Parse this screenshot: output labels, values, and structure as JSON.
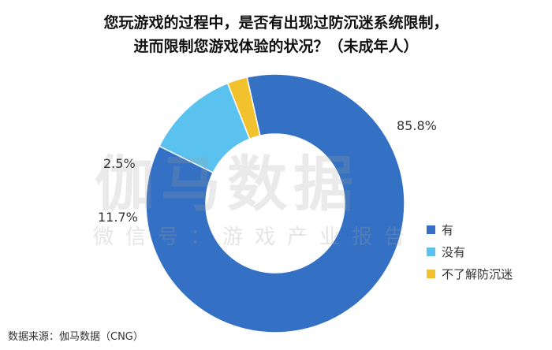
{
  "title_lines": [
    "您玩游戏的过程中，是否有出现过防沉迷系统限制，",
    "进而限制您游戏体验的状况？（未成年人）"
  ],
  "watermark": {
    "main": "伽马数据",
    "sub": "微信号：游戏产业报告"
  },
  "source": "数据来源：伽马数据（CNG）",
  "chart_data": {
    "type": "pie",
    "subtype": "donut",
    "title": "您玩游戏的过程中，是否有出现过防沉迷系统限制，进而限制您游戏体验的状况？（未成年人）",
    "categories": [
      "有",
      "没有",
      "不了解防沉迷"
    ],
    "values": [
      85.8,
      11.7,
      2.5
    ],
    "value_labels": [
      "85.8%",
      "11.7%",
      "2.5%"
    ],
    "colors": [
      "#3470C3",
      "#5BC2F0",
      "#F2C12E"
    ],
    "legend_position": "right",
    "start_angle_deg": -12.6,
    "direction": "clockwise"
  }
}
